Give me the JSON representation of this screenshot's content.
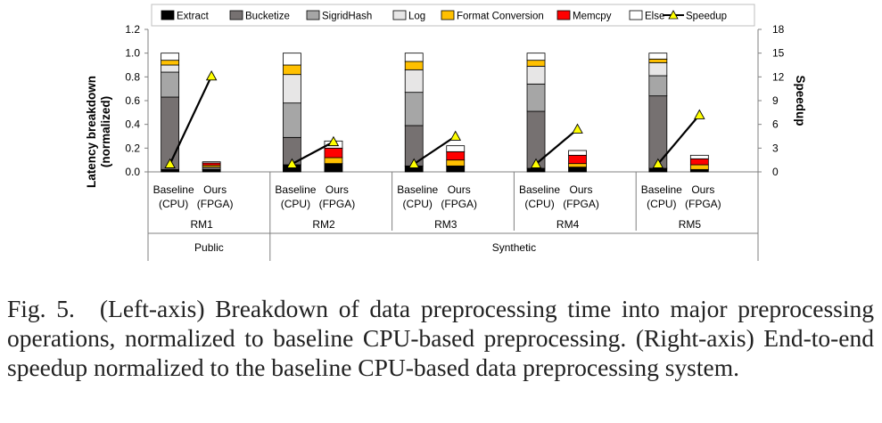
{
  "figure": {
    "caption_label": "Fig. 5.",
    "caption_text": "(Left-axis) Breakdown of data preprocessing time into major preprocessing operations, normalized to baseline CPU-based preprocessing. (Right-axis) End-to-end speedup normalized to the baseline CPU-based data preprocessing system."
  },
  "chart_data": {
    "type": "bar",
    "stacked": true,
    "ylabel": "Latency breakdown (normalized)",
    "y2label": "Speedup",
    "ylim": [
      0,
      1.2
    ],
    "y_ticks": [
      "0.0",
      "0.2",
      "0.4",
      "0.6",
      "0.8",
      "1.0",
      "1.2"
    ],
    "y2lim": [
      0,
      18
    ],
    "y2_ticks": [
      "0",
      "3",
      "6",
      "9",
      "12",
      "15",
      "18"
    ],
    "legend_position": "top",
    "colors": {
      "Extract": "#000000",
      "Bucketize": "#767171",
      "SigridHash": "#a6a6a6",
      "Log": "#e7e6e6",
      "Format Conversion": "#ffc000",
      "Memcpy": "#ff0000",
      "Else": "#ffffff",
      "Speedup_marker": "#ffff00"
    },
    "legend": [
      "Extract",
      "Bucketize",
      "SigridHash",
      "Log",
      "Format Conversion",
      "Memcpy",
      "Else",
      "Speedup"
    ],
    "groups": [
      {
        "model": "RM1",
        "bars": [
          {
            "label": "Baseline (CPU)",
            "label_lines": [
              "Baseline",
              "(CPU)"
            ],
            "speedup": 1.0,
            "segments": {
              "Extract": 0.02,
              "Bucketize": 0.61,
              "SigridHash": 0.21,
              "Log": 0.06,
              "Format Conversion": 0.04,
              "Memcpy": 0.0,
              "Else": 0.06
            }
          },
          {
            "label": "Ours (FPGA)",
            "label_lines": [
              "Ours",
              "(FPGA)"
            ],
            "speedup": 12.1,
            "segments": {
              "Extract": 0.02,
              "Bucketize": 0.02,
              "SigridHash": 0.0,
              "Log": 0.0,
              "Format Conversion": 0.015,
              "Memcpy": 0.02,
              "Else": 0.01
            }
          }
        ]
      },
      {
        "model": "RM2",
        "bars": [
          {
            "label": "Baseline (CPU)",
            "label_lines": [
              "Baseline",
              "(CPU)"
            ],
            "speedup": 1.0,
            "segments": {
              "Extract": 0.06,
              "Bucketize": 0.23,
              "SigridHash": 0.29,
              "Log": 0.24,
              "Format Conversion": 0.08,
              "Memcpy": 0.0,
              "Else": 0.1
            }
          },
          {
            "label": "Ours (FPGA)",
            "label_lines": [
              "Ours",
              "(FPGA)"
            ],
            "speedup": 3.8,
            "segments": {
              "Extract": 0.07,
              "Bucketize": 0.0,
              "SigridHash": 0.0,
              "Log": 0.0,
              "Format Conversion": 0.05,
              "Memcpy": 0.08,
              "Else": 0.06
            }
          }
        ]
      },
      {
        "model": "RM3",
        "bars": [
          {
            "label": "Baseline (CPU)",
            "label_lines": [
              "Baseline",
              "(CPU)"
            ],
            "speedup": 1.0,
            "segments": {
              "Extract": 0.05,
              "Bucketize": 0.34,
              "SigridHash": 0.28,
              "Log": 0.19,
              "Format Conversion": 0.07,
              "Memcpy": 0.0,
              "Else": 0.07
            }
          },
          {
            "label": "Ours (FPGA)",
            "label_lines": [
              "Ours",
              "(FPGA)"
            ],
            "speedup": 4.5,
            "segments": {
              "Extract": 0.05,
              "Bucketize": 0.0,
              "SigridHash": 0.0,
              "Log": 0.0,
              "Format Conversion": 0.05,
              "Memcpy": 0.07,
              "Else": 0.05
            }
          }
        ]
      },
      {
        "model": "RM4",
        "bars": [
          {
            "label": "Baseline (CPU)",
            "label_lines": [
              "Baseline",
              "(CPU)"
            ],
            "speedup": 1.0,
            "segments": {
              "Extract": 0.03,
              "Bucketize": 0.48,
              "SigridHash": 0.23,
              "Log": 0.15,
              "Format Conversion": 0.05,
              "Memcpy": 0.0,
              "Else": 0.06
            }
          },
          {
            "label": "Ours (FPGA)",
            "label_lines": [
              "Ours",
              "(FPGA)"
            ],
            "speedup": 5.4,
            "segments": {
              "Extract": 0.04,
              "Bucketize": 0.0,
              "SigridHash": 0.0,
              "Log": 0.0,
              "Format Conversion": 0.03,
              "Memcpy": 0.07,
              "Else": 0.04
            }
          }
        ]
      },
      {
        "model": "RM5",
        "bars": [
          {
            "label": "Baseline (CPU)",
            "label_lines": [
              "Baseline",
              "(CPU)"
            ],
            "speedup": 1.0,
            "segments": {
              "Extract": 0.03,
              "Bucketize": 0.61,
              "SigridHash": 0.17,
              "Log": 0.11,
              "Format Conversion": 0.03,
              "Memcpy": 0.0,
              "Else": 0.05
            }
          },
          {
            "label": "Ours (FPGA)",
            "label_lines": [
              "Ours",
              "(FPGA)"
            ],
            "speedup": 7.2,
            "segments": {
              "Extract": 0.02,
              "Bucketize": 0.0,
              "SigridHash": 0.0,
              "Log": 0.0,
              "Format Conversion": 0.04,
              "Memcpy": 0.05,
              "Else": 0.03
            }
          }
        ]
      }
    ],
    "categories": [
      {
        "label": "Public",
        "models": [
          "RM1"
        ]
      },
      {
        "label": "Synthetic",
        "models": [
          "RM2",
          "RM3",
          "RM4",
          "RM5"
        ]
      }
    ]
  }
}
